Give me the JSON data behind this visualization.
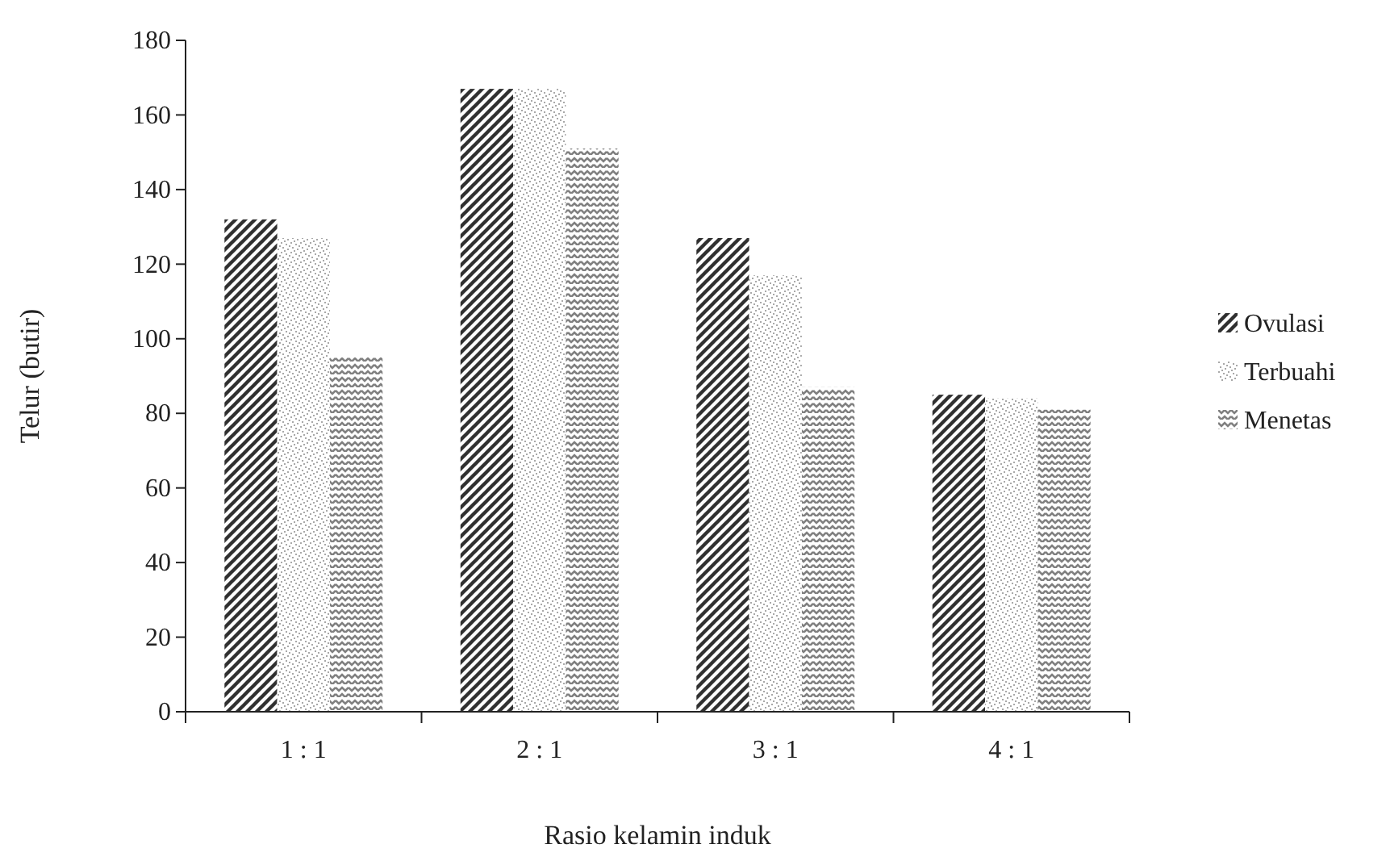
{
  "chart_data": {
    "type": "bar",
    "xlabel": "Rasio kelamin induk",
    "ylabel": "Telur (butir)",
    "categories": [
      "1 : 1",
      "2 : 1",
      "3 : 1",
      "4 : 1"
    ],
    "series": [
      {
        "name": "Ovulasi",
        "color": "#303030",
        "values": [
          132,
          167,
          127,
          85
        ]
      },
      {
        "name": "Terbuahi",
        "color": "#a8a8a8",
        "values": [
          127,
          167,
          117,
          84
        ]
      },
      {
        "name": "Menetas",
        "color": "#808080",
        "values": [
          95,
          151,
          87,
          81
        ]
      }
    ],
    "ylim": [
      0,
      180
    ],
    "yticks": [
      0,
      20,
      40,
      60,
      80,
      100,
      120,
      140,
      160,
      180
    ],
    "grid": false,
    "legend": "right"
  }
}
